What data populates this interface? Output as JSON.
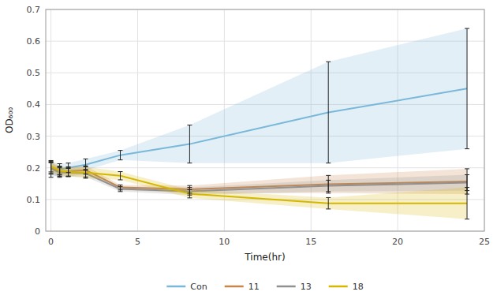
{
  "chart_data": {
    "type": "line",
    "title": "",
    "xlabel": "Time(hr)",
    "ylabel": "OD₆₀₀",
    "x": [
      0,
      0.5,
      1,
      2,
      4,
      8,
      16,
      24
    ],
    "xlim": [
      -0.3,
      25
    ],
    "xticks": [
      0,
      5,
      10,
      15,
      20,
      25
    ],
    "ylim": [
      0,
      0.7
    ],
    "yticks": [
      0,
      0.1,
      0.2,
      0.3,
      0.4,
      0.5,
      0.6,
      0.7
    ],
    "grid": true,
    "legend": "bottom",
    "series": [
      {
        "name": "Con",
        "color": "#7AB8D9",
        "values": [
          0.195,
          0.195,
          0.2,
          0.21,
          0.24,
          0.275,
          0.375,
          0.45
        ],
        "errors": [
          0.025,
          0.018,
          0.015,
          0.018,
          0.015,
          0.06,
          0.16,
          0.19
        ]
      },
      {
        "name": "11",
        "color": "#C8864A",
        "values": [
          0.2,
          0.188,
          0.188,
          0.193,
          0.138,
          0.132,
          0.148,
          0.157
        ],
        "errors": [
          0.018,
          0.015,
          0.015,
          0.013,
          0.008,
          0.012,
          0.028,
          0.04
        ]
      },
      {
        "name": "13",
        "color": "#909090",
        "values": [
          0.198,
          0.185,
          0.185,
          0.183,
          0.133,
          0.126,
          0.143,
          0.153
        ],
        "errors": [
          0.018,
          0.015,
          0.013,
          0.012,
          0.008,
          0.012,
          0.018,
          0.025
        ]
      },
      {
        "name": "18",
        "color": "#D4B800",
        "values": [
          0.205,
          0.192,
          0.187,
          0.185,
          0.175,
          0.118,
          0.088,
          0.088
        ],
        "errors": [
          0.018,
          0.013,
          0.013,
          0.018,
          0.013,
          0.013,
          0.018,
          0.05
        ]
      }
    ]
  }
}
